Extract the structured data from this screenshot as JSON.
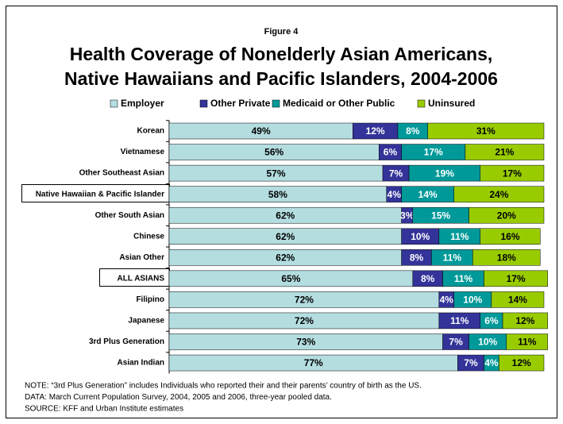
{
  "chart_data": {
    "type": "stacked-bar-horizontal",
    "figure_label": "Figure 4",
    "title": [
      "Health Coverage of Nonelderly Asian Americans,",
      "Native Hawaiians and Pacific Islanders, 2004-2006"
    ],
    "categories": [
      "Korean",
      "Vietnamese",
      "Other Southeast Asian",
      "Native Hawaiian & Pacific Islander",
      "Other South Asian",
      "Chinese",
      "Asian Other",
      "ALL ASIANS",
      "Filipino",
      "Japanese",
      "3rd Plus Generation",
      "Asian Indian"
    ],
    "xlim": [
      0,
      100
    ],
    "series": [
      {
        "name": "Employer",
        "color": "#b4dde0",
        "values": [
          49,
          56,
          57,
          58,
          62,
          62,
          62,
          65,
          72,
          72,
          73,
          77
        ],
        "value_labels": [
          "49%",
          "56%",
          "57%",
          "58%",
          "62%",
          "62%",
          "62%",
          "65%",
          "72%",
          "72%",
          "73%",
          "77%"
        ]
      },
      {
        "name": "Other Private",
        "color": "#333399",
        "values": [
          12,
          6,
          7,
          4,
          3,
          10,
          8,
          8,
          4,
          11,
          7,
          7
        ],
        "value_labels": [
          "12%",
          "6%",
          "7%",
          "4%",
          "3%",
          "10%",
          "8%",
          "8%",
          "4%",
          "11%",
          "7%",
          "7%"
        ]
      },
      {
        "name": "Medicaid or Other Public",
        "color": "#009999",
        "values": [
          8,
          17,
          19,
          14,
          15,
          11,
          11,
          11,
          10,
          6,
          10,
          4
        ],
        "value_labels": [
          "8%",
          "17%",
          "19%",
          "14%",
          "15%",
          "11%",
          "11%",
          "11%",
          "10%",
          "6%",
          "10%",
          "4%"
        ]
      },
      {
        "name": "Uninsured",
        "color": "#99cc00",
        "values": [
          31,
          21,
          17,
          24,
          20,
          16,
          18,
          17,
          14,
          12,
          11,
          12
        ],
        "value_labels": [
          "31%",
          "21%",
          "17%",
          "24%",
          "20%",
          "16%",
          "18%",
          "17%",
          "14%",
          "12%",
          "11%",
          "12%"
        ]
      }
    ],
    "notes": [
      "NOTE: “3rd Plus Generation” includes Individuals who reported their and their parents’ country of birth as the US.",
      "DATA: March Current Population Survey, 2004, 2005 and 2006, three-year pooled data.",
      "SOURCE: KFF and Urban Institute estimates"
    ]
  }
}
